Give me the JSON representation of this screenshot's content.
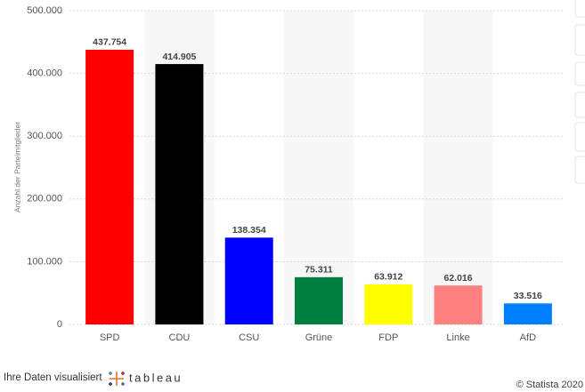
{
  "chart_data": {
    "type": "bar",
    "y_label": "Anzahl der Parteimitglieder",
    "categories": [
      "SPD",
      "CDU",
      "CSU",
      "Grüne",
      "FDP",
      "Linke",
      "AfD"
    ],
    "values": [
      437754,
      414905,
      138354,
      75311,
      63912,
      62016,
      33516
    ],
    "value_labels": [
      "437.754",
      "414.905",
      "138.354",
      "75.311",
      "63.912",
      "62.016",
      "33.516"
    ],
    "colors": [
      "#ff0000",
      "#000000",
      "#0000ff",
      "#008040",
      "#ffff00",
      "#ff8080",
      "#0080ff"
    ],
    "ylim": [
      0,
      500000
    ],
    "yticks": [
      0,
      {
        "value": 100000,
        "label": "100.000"
      },
      {
        "value": 200000,
        "label": "200.000"
      },
      {
        "value": 300000,
        "label": "300.000"
      },
      {
        "value": 400000,
        "label": "400.000"
      },
      {
        "value": 500000,
        "label": "500.000"
      }
    ],
    "grid": true
  },
  "footer": {
    "credit": "Ihre Daten visualisiert",
    "logo": "tableau",
    "copyright": "© Statista 2020"
  }
}
